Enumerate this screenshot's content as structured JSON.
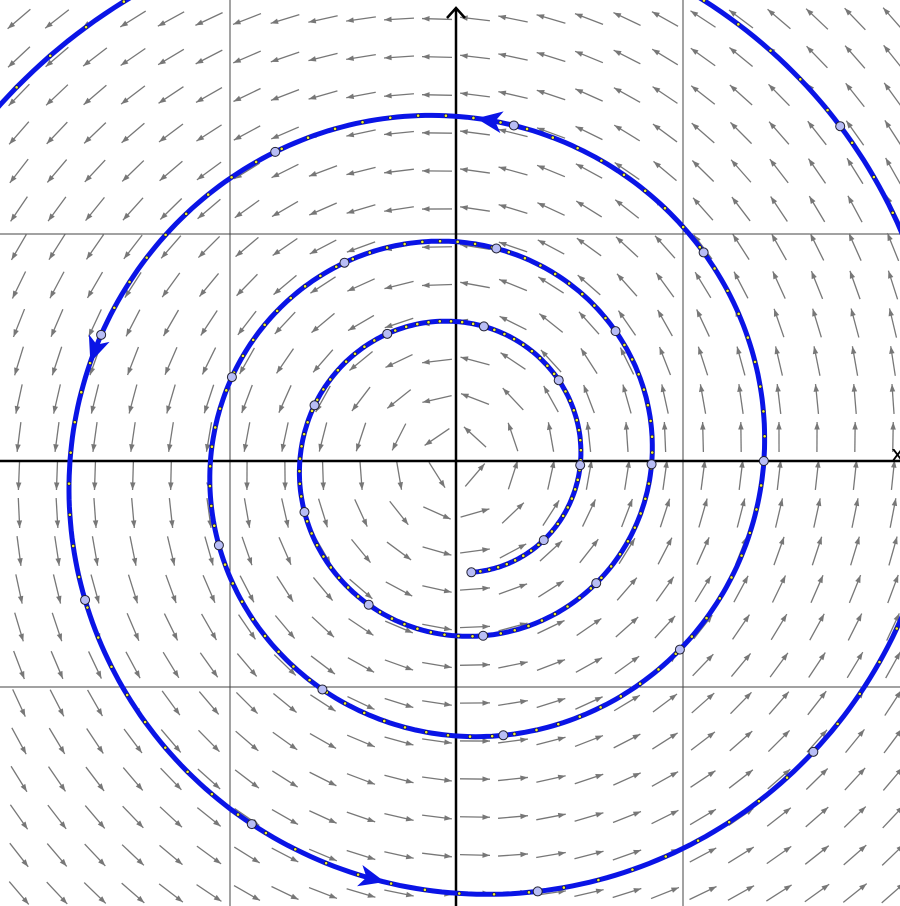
{
  "axes": {
    "x_label": "x"
  }
}
